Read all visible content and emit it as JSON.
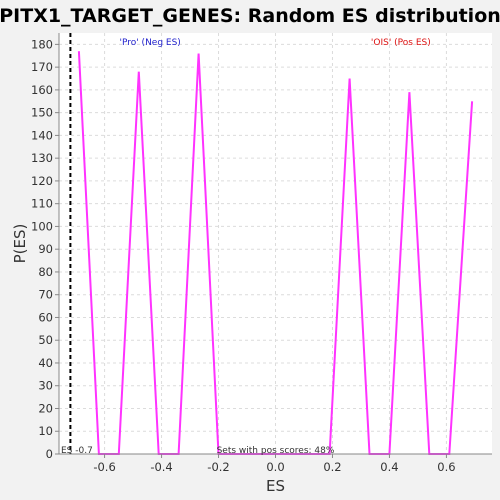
{
  "chart_data": {
    "type": "line",
    "title": "PITX1_TARGET_GENES: Random ES distribution",
    "xlabel": "ES",
    "ylabel": "P(ES)",
    "xlim": [
      -0.76,
      0.76
    ],
    "ylim": [
      0,
      185
    ],
    "x_ticks": [
      -0.6,
      -0.4,
      -0.2,
      0.0,
      0.2,
      0.4,
      0.6
    ],
    "x_tick_labels": [
      "-0.6",
      "-0.4",
      "-0.2",
      "0.0",
      "0.2",
      "0.4",
      "0.6"
    ],
    "y_ticks": [
      0,
      10,
      20,
      30,
      40,
      50,
      60,
      70,
      80,
      90,
      100,
      110,
      120,
      130,
      140,
      150,
      160,
      170,
      180
    ],
    "y_tick_labels": [
      "0",
      "10",
      "20",
      "30",
      "40",
      "50",
      "60",
      "70",
      "80",
      "90",
      "100",
      "110",
      "120",
      "130",
      "140",
      "150",
      "160",
      "170",
      "180"
    ],
    "grid": true,
    "series": [
      {
        "color": "#ff33ff",
        "x": [
          -0.69,
          -0.62,
          -0.55,
          -0.48,
          -0.41,
          -0.34,
          -0.27,
          -0.2,
          -0.13,
          0.13,
          0.19,
          0.26,
          0.33,
          0.4,
          0.47,
          0.54,
          0.61,
          0.69
        ],
        "y": [
          177,
          0,
          0,
          168,
          0,
          0,
          176,
          0,
          0,
          0,
          0,
          165,
          0,
          0,
          159,
          0,
          0,
          155
        ]
      }
    ],
    "reference_line": {
      "x": -0.72,
      "label": "ES -0.7",
      "color": "#000000"
    },
    "annotations": {
      "neg": {
        "text": "'Pro' (Neg ES)",
        "color": "#2222cc",
        "x": -0.44
      },
      "pos": {
        "text": "'OIS' (Pos ES)",
        "color": "#dd1111",
        "x": 0.44
      },
      "pos_scores": {
        "text": "Sets with pos scores: 48%",
        "x": 0.0
      }
    }
  }
}
